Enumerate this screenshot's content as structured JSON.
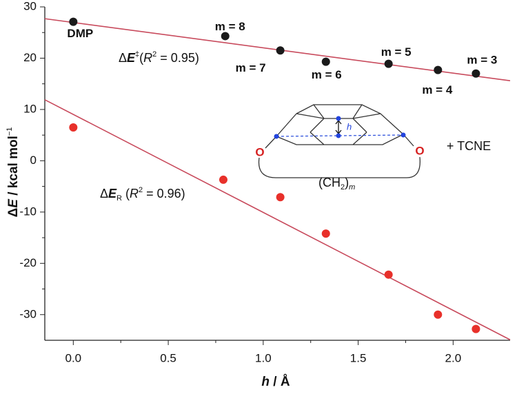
{
  "chart_data": {
    "type": "scatter",
    "xlim": [
      -0.15,
      2.3
    ],
    "ylim": [
      -35,
      30
    ],
    "xticks": [
      {
        "value": 0,
        "label": "0.0"
      },
      0.5,
      {
        "value": 1,
        "label": "1.0"
      },
      1.5,
      {
        "value": 2,
        "label": "2.0"
      }
    ],
    "yticks": [
      -30,
      -20,
      -10,
      0,
      10,
      20,
      30
    ],
    "x_label": [
      {
        "text": "h",
        "style": "bold-italic"
      },
      {
        "text": " / Å",
        "style": "bold"
      }
    ],
    "y_label": [
      {
        "text": "Δ",
        "style": "bold"
      },
      {
        "text": "E",
        "style": "bold-italic"
      },
      {
        "text": " / kcal mol",
        "style": "bold"
      },
      {
        "text": "−1",
        "style": "sup"
      }
    ],
    "line_color": "#c84a5c",
    "series": [
      {
        "color": "#1a1a1a",
        "x": [
          0,
          0.8,
          1.09,
          1.33,
          1.66,
          1.92,
          2.12
        ],
        "values": [
          27.1,
          24.3,
          21.5,
          19.3,
          18.9,
          17.7,
          17.0
        ],
        "point_labels": [
          "DMP",
          "m = 8",
          "m = 7",
          "m = 6",
          "m = 5",
          "m = 4",
          "m = 3"
        ],
        "fit": {
          "x": [
            -0.15,
            2.3
          ],
          "values": [
            27.7,
            15.6
          ]
        },
        "annotation": [
          {
            "text": "Δ"
          },
          {
            "text": "E",
            "style": "bold-italic"
          },
          {
            "text": "‡",
            "style": "sup"
          },
          {
            "text": "("
          },
          {
            "text": "R",
            "style": "italic"
          },
          {
            "text": "2",
            "style": "sup"
          },
          {
            "text": " = 0.95)"
          }
        ]
      },
      {
        "color": "#e8302a",
        "x": [
          0,
          0.79,
          1.09,
          1.33,
          1.66,
          1.92,
          2.12
        ],
        "values": [
          6.5,
          -3.7,
          -7.1,
          -14.2,
          -22.2,
          -30.0,
          -32.8
        ],
        "fit": {
          "x": [
            -0.15,
            2.3
          ],
          "values": [
            11.9,
            -34.9
          ]
        },
        "annotation": [
          {
            "text": "Δ"
          },
          {
            "text": "E",
            "style": "bold-italic"
          },
          {
            "text": "R",
            "style": "sub"
          },
          {
            "text": " ("
          },
          {
            "text": "R",
            "style": "italic"
          },
          {
            "text": "2",
            "style": "sup"
          },
          {
            "text": " = 0.96)"
          }
        ]
      }
    ],
    "inset": {
      "height_label": "h",
      "oxygen_left": "O",
      "oxygen_right": "O",
      "chain": [
        {
          "text": "(CH"
        },
        {
          "text": "2",
          "style": "sub"
        },
        {
          "text": ")"
        },
        {
          "text": "m",
          "style": "sub-italic"
        }
      ],
      "reagent": "+ TCNE"
    }
  }
}
